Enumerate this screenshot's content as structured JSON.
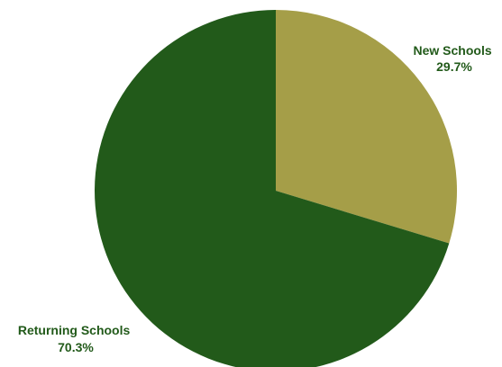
{
  "chart_data": {
    "type": "pie",
    "title": "",
    "slices": [
      {
        "label": "New Schools",
        "value": 29.7,
        "value_label": "29.7%",
        "color": "#a59e48"
      },
      {
        "label": "Returning Schools",
        "value": 70.3,
        "value_label": "70.3%",
        "color": "#225a1a"
      }
    ],
    "label_color": "#225a1a",
    "start_angle": "12 o'clock",
    "direction": "clockwise"
  }
}
